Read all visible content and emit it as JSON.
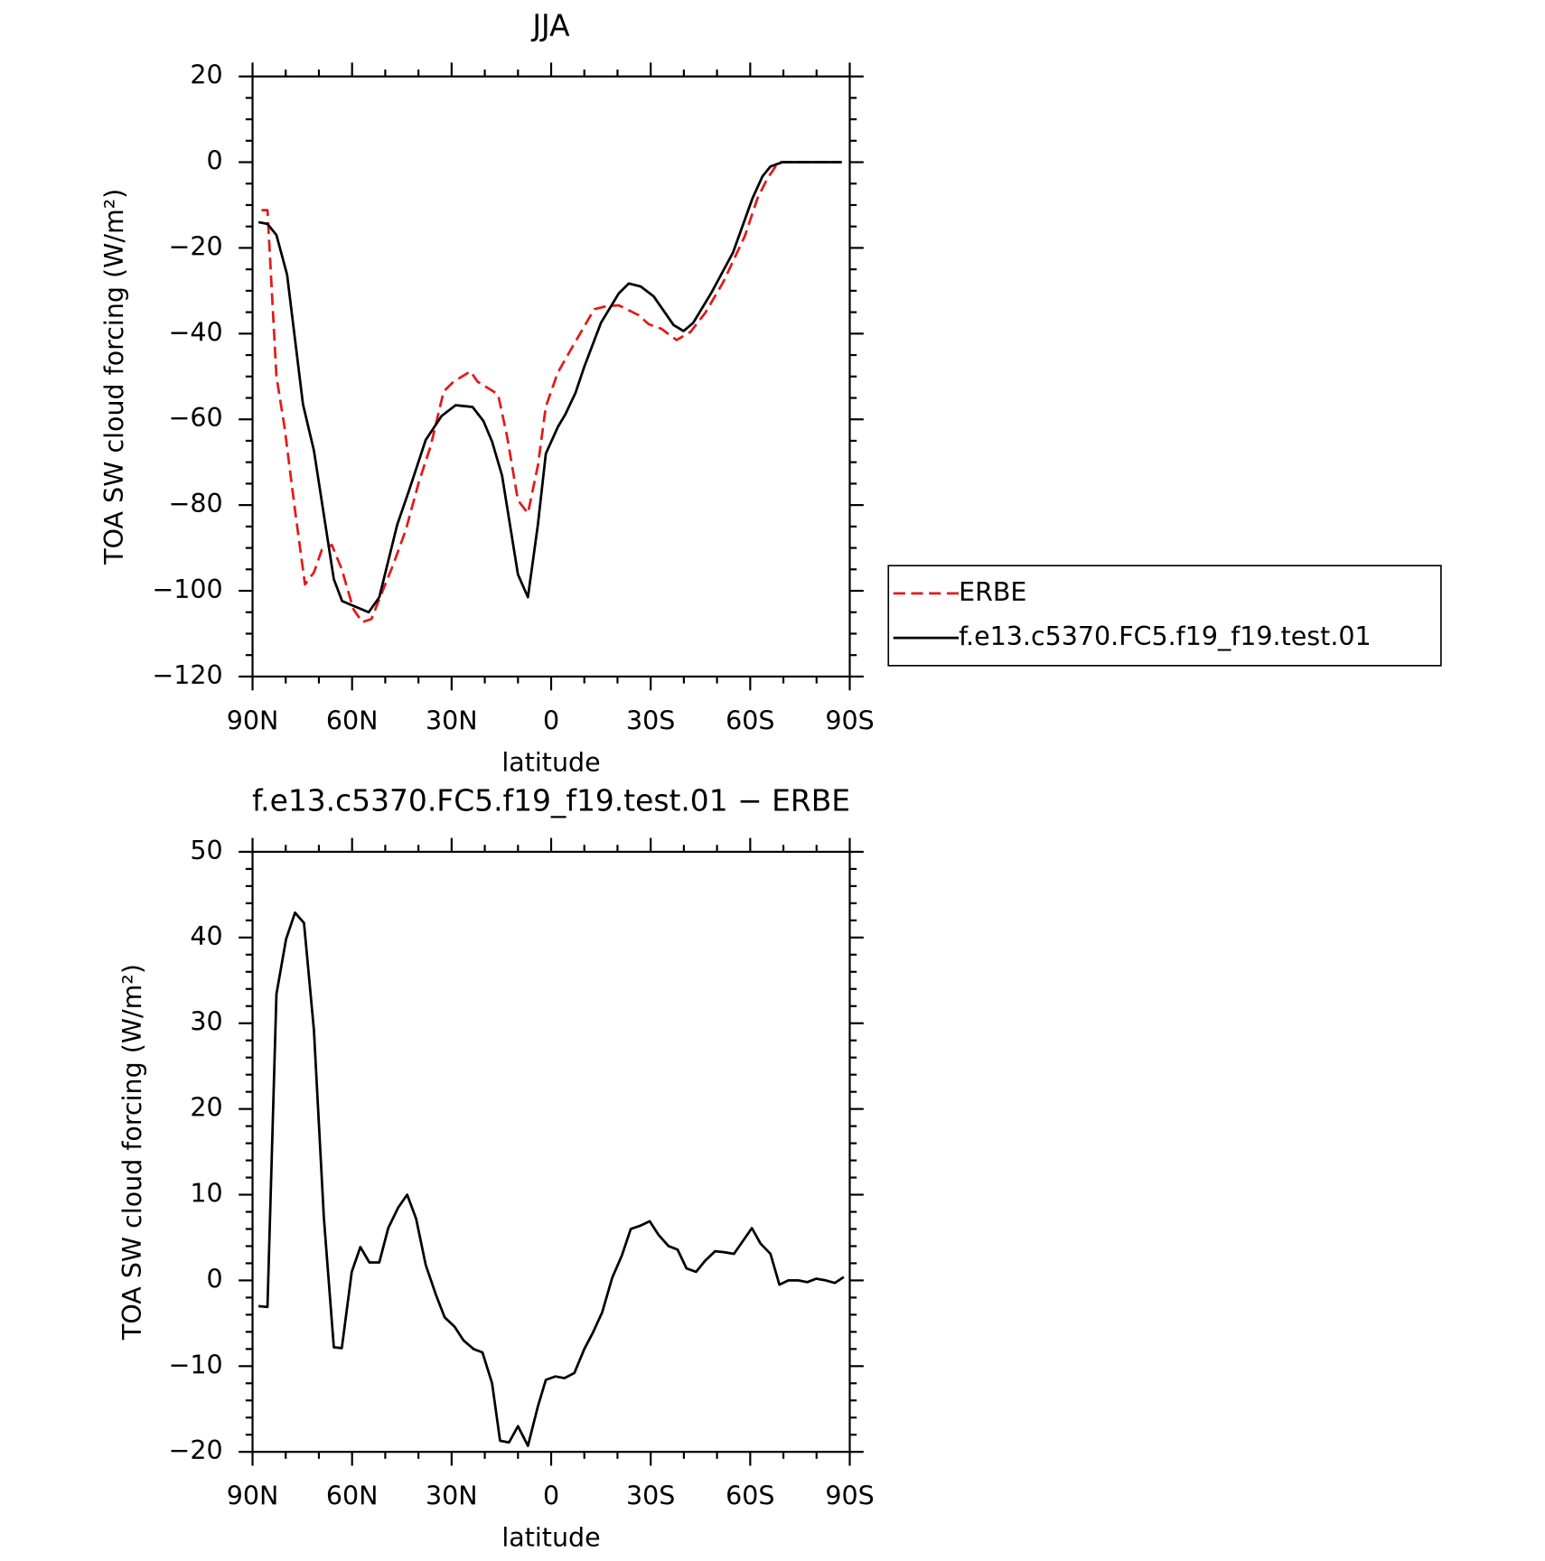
{
  "chart_data": [
    {
      "type": "line",
      "title": "JJA",
      "x_label": "latitude",
      "y_label": "TOA SW cloud forcing (W/m²)",
      "xlim": [
        90,
        -90
      ],
      "xticks": [
        {
          "value": 90,
          "label": "90N"
        },
        {
          "value": 60,
          "label": "60N"
        },
        {
          "value": 30,
          "label": "30N"
        },
        0,
        {
          "value": -30,
          "label": "30S"
        },
        {
          "value": -60,
          "label": "60S"
        },
        {
          "value": -90,
          "label": "90S"
        }
      ],
      "ylim": [
        -120,
        20
      ],
      "yticks": [
        {
          "value": -120,
          "label": "−120"
        },
        {
          "value": -100,
          "label": "−100"
        },
        {
          "value": -80,
          "label": "−80"
        },
        {
          "value": -60,
          "label": "−60"
        },
        {
          "value": -40,
          "label": "−40"
        },
        {
          "value": -20,
          "label": "−20"
        },
        0,
        20
      ],
      "x_minor_divisions": 3,
      "y_minor_divisions": 4,
      "legend": "right",
      "series": [
        {
          "name": "ERBE",
          "color": "#e31a1c",
          "style": "dashed",
          "x": [
            87.3,
            85.5,
            82.8,
            80.4,
            77.2,
            74.2,
            71.5,
            69.1,
            66.1,
            63.1,
            59.6,
            56.9,
            54.2,
            51.2,
            47.6,
            43.8,
            39.9,
            36.3,
            32.4,
            29.4,
            24.3,
            22.2,
            18.4,
            16,
            13.3,
            10,
            7,
            4,
            1.6,
            -2,
            -6.4,
            -13,
            -16.6,
            -20.4,
            -26.4,
            -29.4,
            -33.3,
            -37.8,
            -42,
            -46.4,
            -51.8,
            -58.4,
            -62.2,
            -65.2,
            -68.5,
            -77.2,
            -87.6
          ],
          "values": [
            -11.2,
            -11.2,
            -50,
            -61.6,
            -81.2,
            -98.5,
            -95.7,
            -90.4,
            -89.3,
            -95,
            -104.3,
            -107.3,
            -106.6,
            -100.8,
            -93.9,
            -85.8,
            -74.7,
            -66.2,
            -53.5,
            -51.2,
            -48.8,
            -51.2,
            -53,
            -54.2,
            -63.9,
            -78.9,
            -81.9,
            -70.8,
            -57,
            -49.1,
            -43.1,
            -34.3,
            -33.6,
            -33.4,
            -35.7,
            -37.8,
            -38.9,
            -41.5,
            -39.6,
            -35.2,
            -28.1,
            -17.2,
            -8.4,
            -3.8,
            0,
            0,
            0
          ]
        },
        {
          "name": "f.e13.c5370.FC5.f19_f19.test.01",
          "color": "#000000",
          "style": "solid",
          "x": [
            88.2,
            85.5,
            82.8,
            79.6,
            74.8,
            71.5,
            65.5,
            63,
            59.3,
            55,
            51.8,
            46.4,
            42.8,
            37.8,
            33,
            28.8,
            23.7,
            20.4,
            17.8,
            14.8,
            10,
            7,
            4,
            1.6,
            -2,
            -4.3,
            -7.3,
            -10,
            -15,
            -20.4,
            -23.4,
            -27,
            -30.9,
            -36.9,
            -39.9,
            -42.8,
            -48.2,
            -54.8,
            -60.7,
            -63.7,
            -66.1,
            -69.7,
            -87.6
          ],
          "values": [
            -14,
            -14.4,
            -17,
            -26.2,
            -56.5,
            -67.3,
            -97.3,
            -102.4,
            -103.6,
            -105,
            -101.5,
            -84.6,
            -76.5,
            -64.8,
            -59.2,
            -56.7,
            -57.1,
            -60.4,
            -65.2,
            -73.1,
            -96.2,
            -101.5,
            -84.6,
            -68,
            -61.8,
            -58.8,
            -53.9,
            -47.7,
            -37.5,
            -30.6,
            -28.3,
            -29,
            -31.3,
            -38,
            -39.4,
            -37.5,
            -30.6,
            -21.1,
            -8.4,
            -3.3,
            -1,
            0,
            0
          ]
        }
      ]
    },
    {
      "type": "line",
      "title": "f.e13.c5370.FC5.f19_f19.test.01 − ERBE",
      "x_label": "latitude",
      "y_label": "TOA SW cloud forcing (W/m²)",
      "xlim": [
        90,
        -90
      ],
      "xticks": [
        {
          "value": 90,
          "label": "90N"
        },
        {
          "value": 60,
          "label": "60N"
        },
        {
          "value": 30,
          "label": "30N"
        },
        0,
        {
          "value": -30,
          "label": "30S"
        },
        {
          "value": -60,
          "label": "60S"
        },
        {
          "value": -90,
          "label": "90S"
        }
      ],
      "ylim": [
        -20,
        50
      ],
      "yticks": [
        {
          "value": -20,
          "label": "−20"
        },
        {
          "value": -10,
          "label": "−10"
        },
        0,
        10,
        20,
        30,
        40,
        50
      ],
      "x_minor_divisions": 3,
      "y_minor_divisions": 5,
      "series": [
        {
          "color": "#000000",
          "style": "solid",
          "x": [
            88.2,
            85.5,
            82.8,
            79.9,
            77.2,
            74.5,
            71.5,
            68.5,
            65.5,
            63.1,
            60.1,
            57.5,
            54.8,
            51.8,
            49.1,
            46.1,
            43.4,
            40.7,
            37.8,
            34.8,
            32.1,
            29.1,
            26.4,
            23.4,
            20.7,
            17.8,
            15.4,
            12.7,
            10,
            7,
            4,
            1.6,
            -1.3,
            -4,
            -7,
            -10,
            -12.7,
            -15.4,
            -18.4,
            -21.3,
            -24,
            -27,
            -29.7,
            -32.4,
            -35.4,
            -38.1,
            -40.8,
            -43.7,
            -46.4,
            -49.4,
            -52.1,
            -55.1,
            -57.8,
            -60.5,
            -63.1,
            -66.1,
            -68.8,
            -71.5,
            -74.5,
            -77.2,
            -79.9,
            -82.8,
            -85.5,
            -88.2
          ],
          "values": [
            -3,
            -3.1,
            33.4,
            39.8,
            42.9,
            41.7,
            29.2,
            7.3,
            -7.8,
            -7.9,
            1,
            3.9,
            2.1,
            2.1,
            6.1,
            8.5,
            10,
            7.2,
            1.8,
            -1.6,
            -4.3,
            -5.4,
            -7,
            -8,
            -8.4,
            -12,
            -18.7,
            -18.9,
            -17,
            -19.3,
            -14.7,
            -11.6,
            -11.2,
            -11.4,
            -10.8,
            -8,
            -6,
            -3.7,
            0.3,
            2.9,
            6,
            6.4,
            6.9,
            5.3,
            4,
            3.6,
            1.4,
            1,
            2.3,
            3.4,
            3.3,
            3.1,
            4.6,
            6.1,
            4.3,
            3.1,
            -0.5,
            0,
            0,
            -0.2,
            0.2,
            0,
            -0.3,
            0.4
          ]
        }
      ]
    }
  ]
}
